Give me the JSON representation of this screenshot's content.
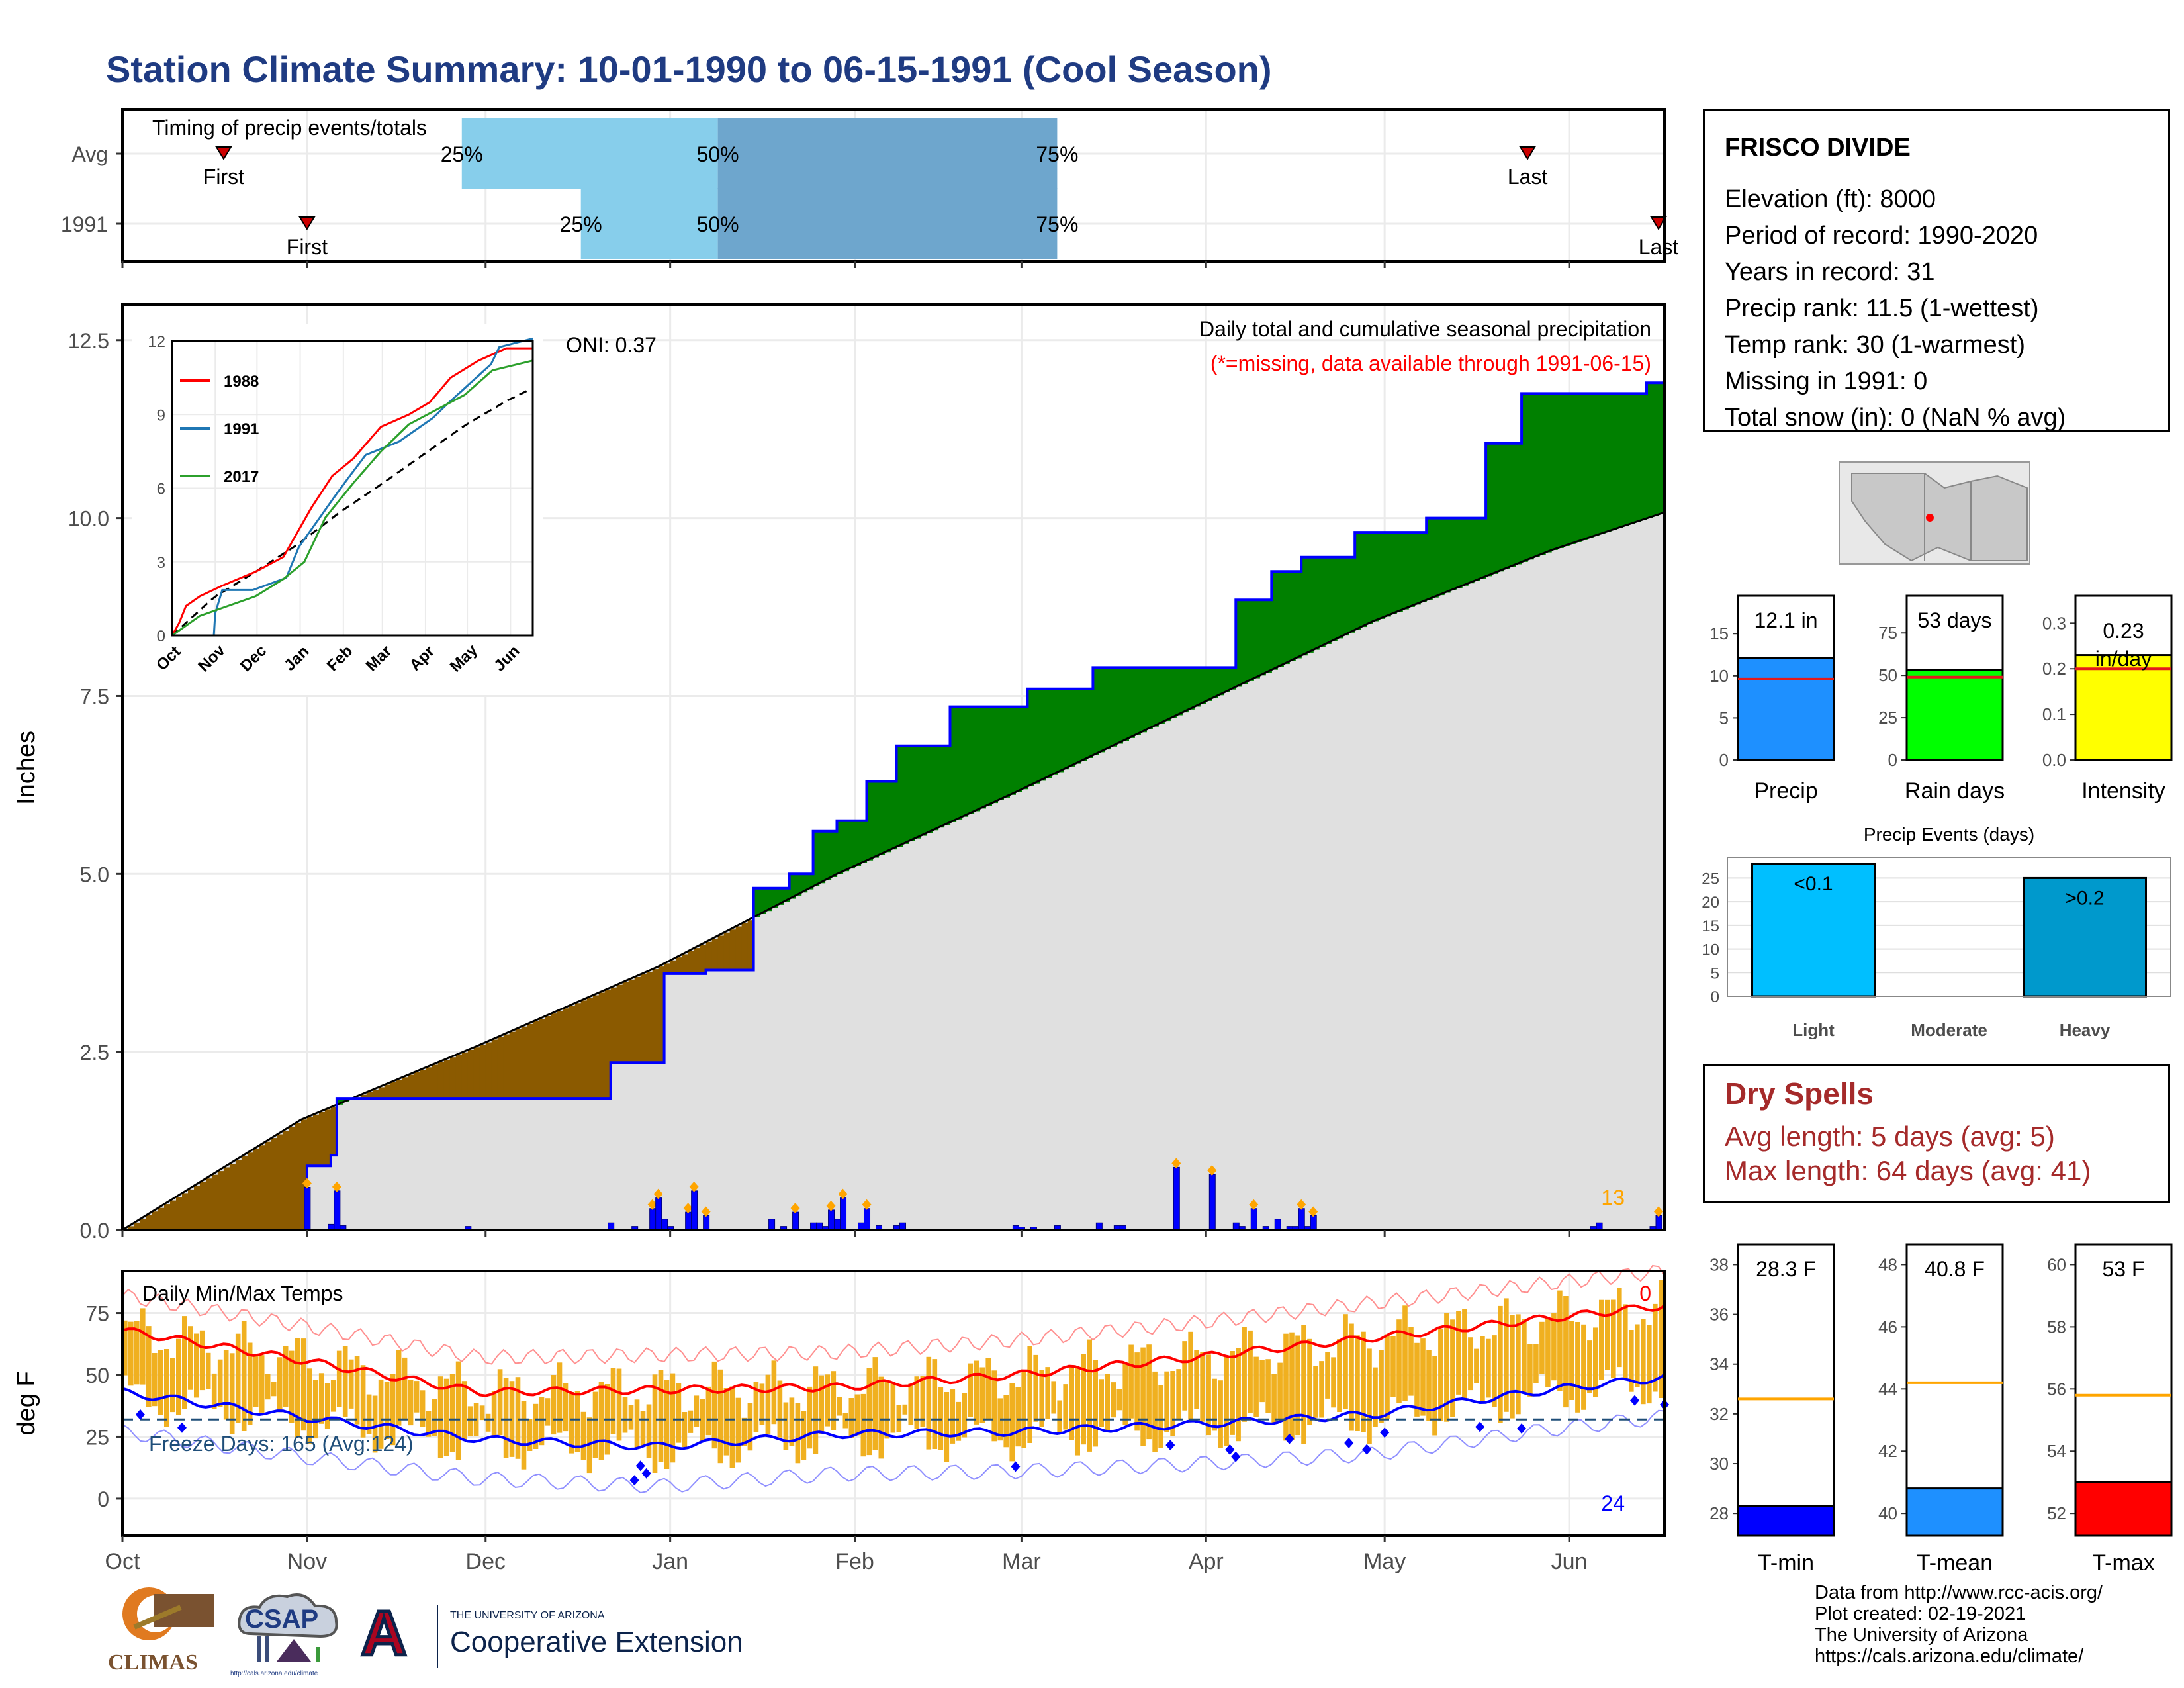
{
  "page": {
    "title": "Station Climate Summary: 10-01-1990 to 06-15-1991 (Cool Season)",
    "colors": {
      "title": "#1f3b82",
      "avg_total": "#e0e0e0",
      "surplus": "#008000",
      "deficit": "#8b5a00",
      "cum_line": "#0000ff",
      "daily_bar": "#0000ff",
      "temp_bar": "#f0b020",
      "tmax": "#ff0000",
      "tmin": "#0000ff",
      "dry": "#a52a2a"
    }
  },
  "timing": {
    "title": "Timing of precip events/totals",
    "rows": [
      {
        "label": "Avg",
        "first_day": 17,
        "last_day": 236,
        "q25_day": 57,
        "q50_day": 100,
        "q75_day": 157,
        "first": "First",
        "last": "Last",
        "p25": "25%",
        "p50": "50%",
        "p75": "75%"
      },
      {
        "label": "1991",
        "first_day": 31,
        "last_day": 258,
        "q25_day": 77,
        "q50_day": 100,
        "q75_day": 157,
        "first": "First",
        "last": "Last",
        "p25": "25%",
        "p50": "50%",
        "p75": "75%"
      }
    ]
  },
  "precip": {
    "ylabel": "Inches",
    "oni": "ONI: 0.37",
    "subtitle": "Daily total and cumulative seasonal precipitation",
    "missing_note": "(*=missing, data available through 1991-06-15)",
    "count_label": "13",
    "yticks": [
      "0.0",
      "2.5",
      "5.0",
      "7.5",
      "10.0",
      "12.5"
    ],
    "inset": {
      "yticks": [
        "0",
        "3",
        "6",
        "9",
        "12"
      ],
      "xticks": [
        "Oct",
        "Nov",
        "Dec",
        "Jan",
        "Feb",
        "Mar",
        "Apr",
        "May",
        "Jun"
      ],
      "legend": [
        "1988",
        "1991",
        "2017"
      ]
    }
  },
  "temps": {
    "title": "Daily Min/Max Temps",
    "ylabel": "deg F",
    "freeze_label": "Freeze Days: 165 (Avg:124)",
    "top_count": "0",
    "bottom_count": "24",
    "yticks": [
      "0",
      "25",
      "50",
      "75"
    ]
  },
  "xaxis": {
    "months": [
      "Oct",
      "Nov",
      "Dec",
      "Jan",
      "Feb",
      "Mar",
      "Apr",
      "May",
      "Jun"
    ]
  },
  "info": {
    "station": "FRISCO DIVIDE",
    "lines": [
      "Elevation (ft): 8000",
      "Period of record: 1990-2020",
      "Years in record: 31",
      "Precip rank: 11.5 (1-wettest)",
      "Temp rank: 30 (1-warmest)",
      "Missing in 1991: 0",
      "Total snow (in): 0 (NaN % avg)"
    ]
  },
  "summary_bars": [
    {
      "label": "Precip",
      "value_label": "12.1 in",
      "value": 12.1,
      "avg": 9.6,
      "max": 19.5,
      "ticks": [
        "0",
        "5",
        "10",
        "15"
      ],
      "color": "#1e90ff"
    },
    {
      "label": "Rain days",
      "value_label": "53 days",
      "value": 53,
      "avg": 49,
      "max": 97,
      "ticks": [
        "0",
        "25",
        "50",
        "75"
      ],
      "color": "#00ff00"
    },
    {
      "label": "Intensity",
      "value_label": "0.23 in/day",
      "value": 0.23,
      "avg": 0.2,
      "max": 0.36,
      "ticks": [
        "0.0",
        "0.1",
        "0.2",
        "0.3"
      ],
      "color": "#ffff00"
    }
  ],
  "events": {
    "title": "Precip Events (days)",
    "ticks": [
      "0",
      "5",
      "10",
      "15",
      "20",
      "25"
    ],
    "categories": [
      {
        "label": "Light",
        "value_label": "<0.1",
        "value": 28,
        "color": "#00bfff"
      },
      {
        "label": "Moderate",
        "value_label": "",
        "value": 0,
        "color": "#1e90ff"
      },
      {
        "label": "Heavy",
        "value_label": ">0.2",
        "value": 25,
        "color": "#0099cc"
      }
    ]
  },
  "dry_spells": {
    "title": "Dry Spells",
    "avg": "Avg length: 5 days (avg: 5)",
    "max": "Max length: 64 days (avg: 41)"
  },
  "temp_summary": [
    {
      "label": "T-min",
      "value_label": "28.3 F",
      "value": 28.3,
      "avg": 32.6,
      "ticks": [
        "28",
        "30",
        "32",
        "34",
        "36",
        "38"
      ],
      "color": "#0000ff"
    },
    {
      "label": "T-mean",
      "value_label": "40.8 F",
      "value": 40.8,
      "avg": 44.2,
      "ticks": [
        "40",
        "42",
        "44",
        "46",
        "48"
      ],
      "color": "#1e90ff"
    },
    {
      "label": "T-max",
      "value_label": "53 F",
      "value": 53,
      "avg": 55.8,
      "ticks": [
        "52",
        "54",
        "56",
        "58",
        "60"
      ],
      "color": "#ff0000"
    }
  ],
  "credits": [
    "Data from http://www.rcc-acis.org/",
    "Plot created: 02-19-2021",
    "The University of Arizona",
    "https://cals.arizona.edu/climate/"
  ],
  "logos": {
    "climas": "CLIMAS",
    "csap": "CSAP",
    "csap_url": "http://cals.arizona.edu/climate",
    "ua_small": "THE UNIVERSITY OF ARIZONA",
    "ua_big": "Cooperative Extension"
  },
  "chart_data": [
    {
      "type": "area",
      "title": "Daily total and cumulative seasonal precipitation",
      "ylabel": "Inches",
      "ylim": [
        0,
        13
      ],
      "series": [
        {
          "name": "1991",
          "x_day": [
            0,
            30,
            31,
            35,
            36,
            58,
            76,
            82,
            91,
            98,
            106,
            112,
            116,
            120,
            125,
            130,
            139,
            152,
            163,
            165,
            187,
            193,
            198,
            207,
            219,
            229,
            235,
            254,
            256,
            259
          ],
          "values": [
            0,
            0,
            0.9,
            1.05,
            1.85,
            1.85,
            1.85,
            2.35,
            3.6,
            3.65,
            4.8,
            5.0,
            5.6,
            5.75,
            6.3,
            6.8,
            7.35,
            7.6,
            7.9,
            7.9,
            8.85,
            9.25,
            9.45,
            9.8,
            10.0,
            11.05,
            11.75,
            11.75,
            11.9,
            12.1
          ]
        },
        {
          "x_day": [
            0,
            30,
            60,
            90,
            120,
            150,
            180,
            210,
            240,
            259
          ],
          "values": [
            0,
            1.55,
            2.6,
            3.7,
            5.0,
            6.15,
            7.35,
            8.55,
            9.55,
            10.08
          ]
        }
      ],
      "daily_x_day": [
        31,
        35,
        36,
        37,
        58,
        82,
        86,
        89,
        90,
        91,
        92,
        95,
        96,
        98,
        109,
        111,
        113,
        116,
        117,
        118,
        119,
        120,
        121,
        124,
        125,
        127,
        130,
        131,
        150,
        151,
        153,
        157,
        164,
        167,
        168,
        177,
        183,
        187,
        188,
        190,
        192,
        194,
        196,
        197,
        198,
        199,
        200,
        247,
        248,
        257,
        258
      ],
      "daily_values": [
        0.6,
        0.08,
        0.55,
        0.06,
        0.05,
        0.1,
        0.05,
        0.3,
        0.45,
        0.15,
        0.05,
        0.25,
        0.55,
        0.2,
        0.15,
        0.05,
        0.25,
        0.1,
        0.1,
        0.05,
        0.28,
        0.15,
        0.45,
        0.1,
        0.3,
        0.06,
        0.06,
        0.1,
        0.06,
        0.04,
        0.04,
        0.06,
        0.1,
        0.06,
        0.06,
        0.88,
        0.78,
        0.1,
        0.05,
        0.3,
        0.05,
        0.15,
        0.05,
        0.05,
        0.3,
        0.05,
        0.2,
        0.05,
        0.1,
        0.05,
        0.2
      ]
    },
    {
      "type": "line",
      "title": "Daily Min/Max Temps",
      "ylabel": "deg F",
      "ylim": [
        -15,
        92
      ],
      "series": [
        {
          "name": "avg max",
          "x_day": [
            0,
            30,
            60,
            90,
            120,
            150,
            180,
            210,
            240,
            259
          ],
          "values": [
            68,
            56,
            43,
            44,
            45,
            50,
            57,
            65,
            73,
            78
          ]
        },
        {
          "name": "avg min",
          "x_day": [
            0,
            30,
            60,
            90,
            120,
            150,
            180,
            210,
            240,
            259
          ],
          "values": [
            43,
            33,
            24,
            21,
            26,
            27,
            30,
            34,
            44,
            49
          ]
        },
        {
          "name": "freeze line",
          "x_day": [
            0,
            259
          ],
          "values": [
            32,
            32
          ]
        }
      ]
    }
  ]
}
